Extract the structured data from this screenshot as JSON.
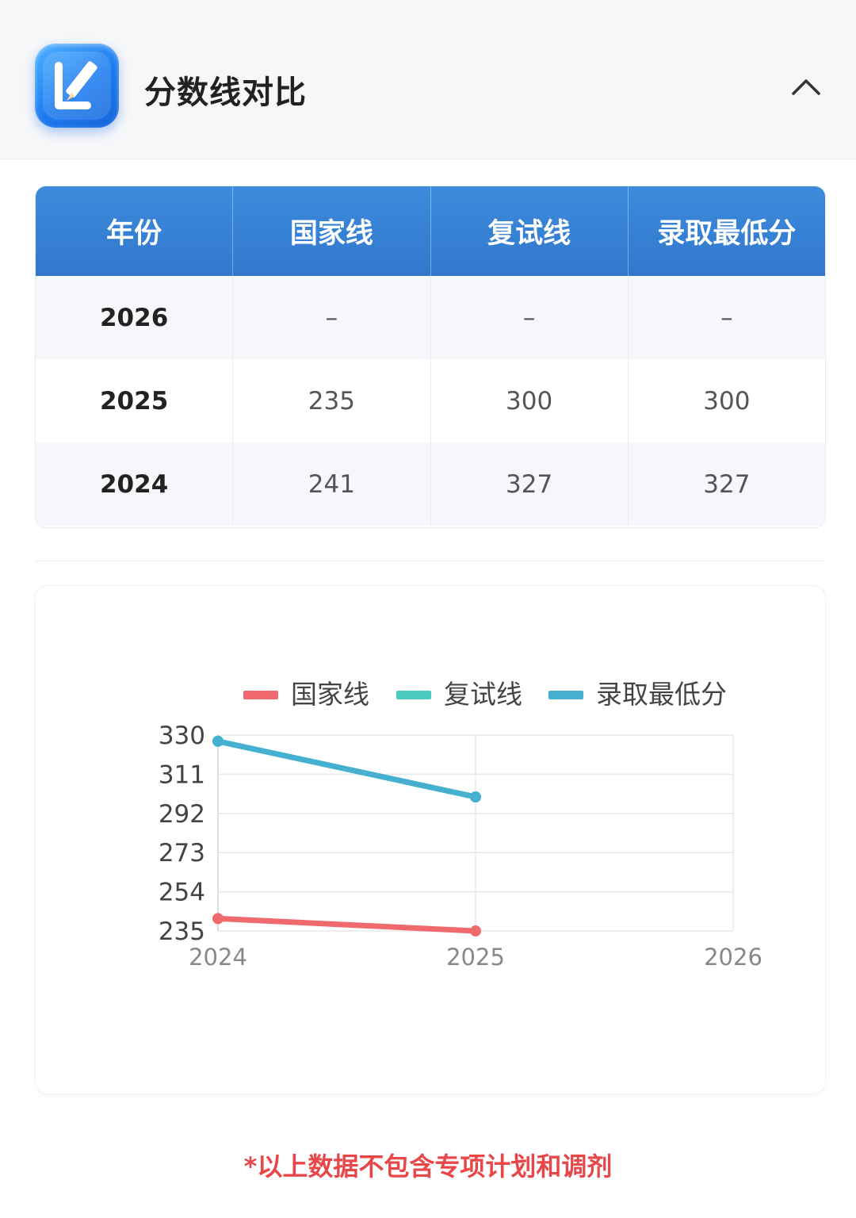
{
  "header": {
    "title": "分数线对比",
    "app_icon": "pencil-edit-icon",
    "collapse_icon": "chevron-up-icon"
  },
  "table": {
    "columns": [
      "年份",
      "国家线",
      "复试线",
      "录取最低分"
    ],
    "rows": [
      [
        "2026",
        "–",
        "–",
        "–"
      ],
      [
        "2025",
        "235",
        "300",
        "300"
      ],
      [
        "2024",
        "241",
        "327",
        "327"
      ]
    ]
  },
  "chart_data": {
    "type": "line",
    "x": [
      "2024",
      "2025",
      "2026"
    ],
    "yticks": [
      "330",
      "311",
      "292",
      "273",
      "254",
      "235"
    ],
    "ylim": [
      235,
      330
    ],
    "grid": true,
    "legend_position": "top",
    "series": [
      {
        "name": "国家线",
        "color": "#f0696c",
        "values": [
          241,
          235,
          null
        ]
      },
      {
        "name": "复试线",
        "color": "#4dcbbf",
        "values": [
          327,
          300,
          null
        ]
      },
      {
        "name": "录取最低分",
        "color": "#45b0d0",
        "values": [
          327,
          300,
          null
        ]
      }
    ]
  },
  "footnote": {
    "text": "*以上数据不包含专项计划和调剂",
    "color": "#e8474a"
  }
}
